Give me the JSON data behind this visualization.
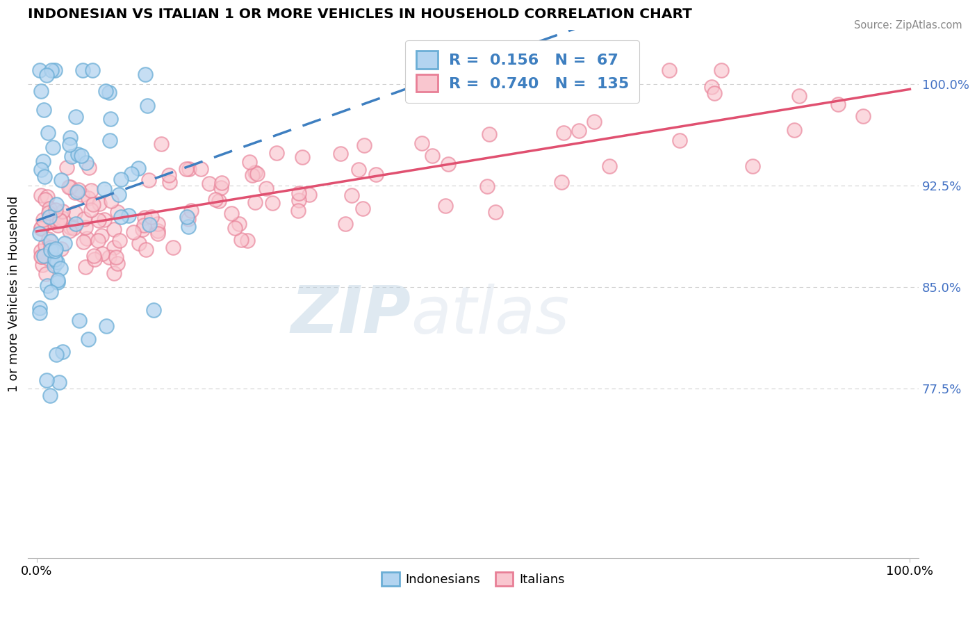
{
  "title": "INDONESIAN VS ITALIAN 1 OR MORE VEHICLES IN HOUSEHOLD CORRELATION CHART",
  "source_text": "Source: ZipAtlas.com",
  "ylabel": "1 or more Vehicles in Household",
  "background_color": "#ffffff",
  "watermark_zip": "ZIP",
  "watermark_atlas": "atlas",
  "indonesian_face_color": "#b3d4f0",
  "indonesian_edge_color": "#6baed6",
  "italian_face_color": "#f9c6cf",
  "italian_edge_color": "#e87f96",
  "indonesian_line_color": "#3e7fc0",
  "italian_line_color": "#e05070",
  "ytick_color": "#4472c4",
  "source_color": "#888888",
  "legend_r_color": "#3e7fc0",
  "grid_color": "#d0d0d0",
  "r_indo": 0.156,
  "n_indo": 67,
  "r_ital": 0.74,
  "n_ital": 135
}
